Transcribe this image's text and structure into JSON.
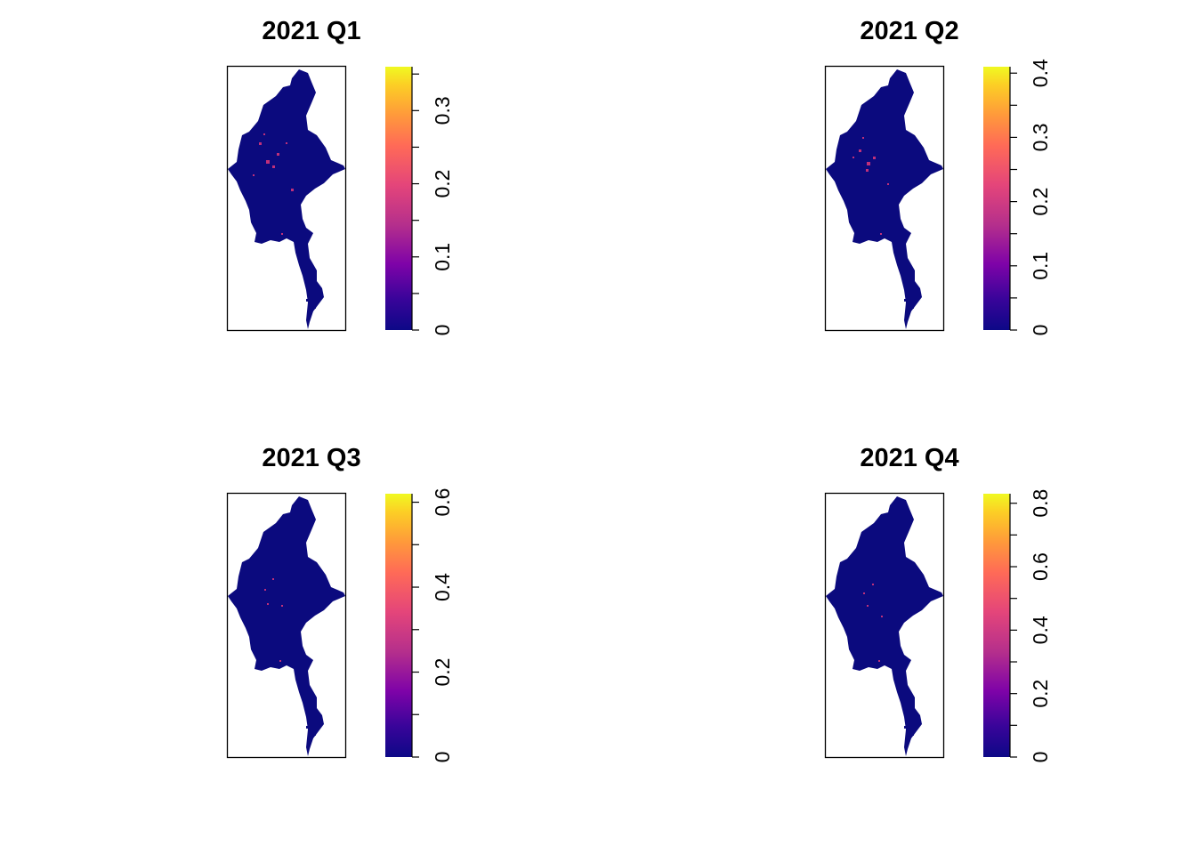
{
  "figure": {
    "panels": [
      {
        "title": "2021 Q1",
        "legend": {
          "min": 0,
          "max": 0.36,
          "ticks": [
            "0",
            "0.1",
            "0.2",
            "0.3"
          ],
          "tick_values": [
            0,
            0.1,
            0.2,
            0.3
          ],
          "minor_step": 0.05
        }
      },
      {
        "title": "2021 Q2",
        "legend": {
          "min": 0,
          "max": 0.41,
          "ticks": [
            "0",
            "0.1",
            "0.2",
            "0.3",
            "0.4"
          ],
          "tick_values": [
            0,
            0.1,
            0.2,
            0.3,
            0.4
          ],
          "minor_step": 0.05
        }
      },
      {
        "title": "2021 Q3",
        "legend": {
          "min": 0,
          "max": 0.62,
          "ticks": [
            "0",
            "0.2",
            "0.4",
            "0.6"
          ],
          "tick_values": [
            0,
            0.2,
            0.4,
            0.6
          ],
          "minor_step": 0.1
        }
      },
      {
        "title": "2021 Q4",
        "legend": {
          "min": 0,
          "max": 0.83,
          "ticks": [
            "0",
            "0.2",
            "0.4",
            "0.6",
            "0.8"
          ],
          "tick_values": [
            0,
            0.2,
            0.4,
            0.6,
            0.8
          ],
          "minor_step": 0.1
        }
      }
    ],
    "colors": {
      "palette": [
        "#0d0887",
        "#3a049a",
        "#7e03a8",
        "#b52f8c",
        "#e4457a",
        "#ff6a57",
        "#ff9b3a",
        "#fcce25",
        "#f0f921"
      ],
      "map_fill": "#0b0a7e",
      "hotspot": "#c0307a",
      "frame": "#000000"
    }
  }
}
